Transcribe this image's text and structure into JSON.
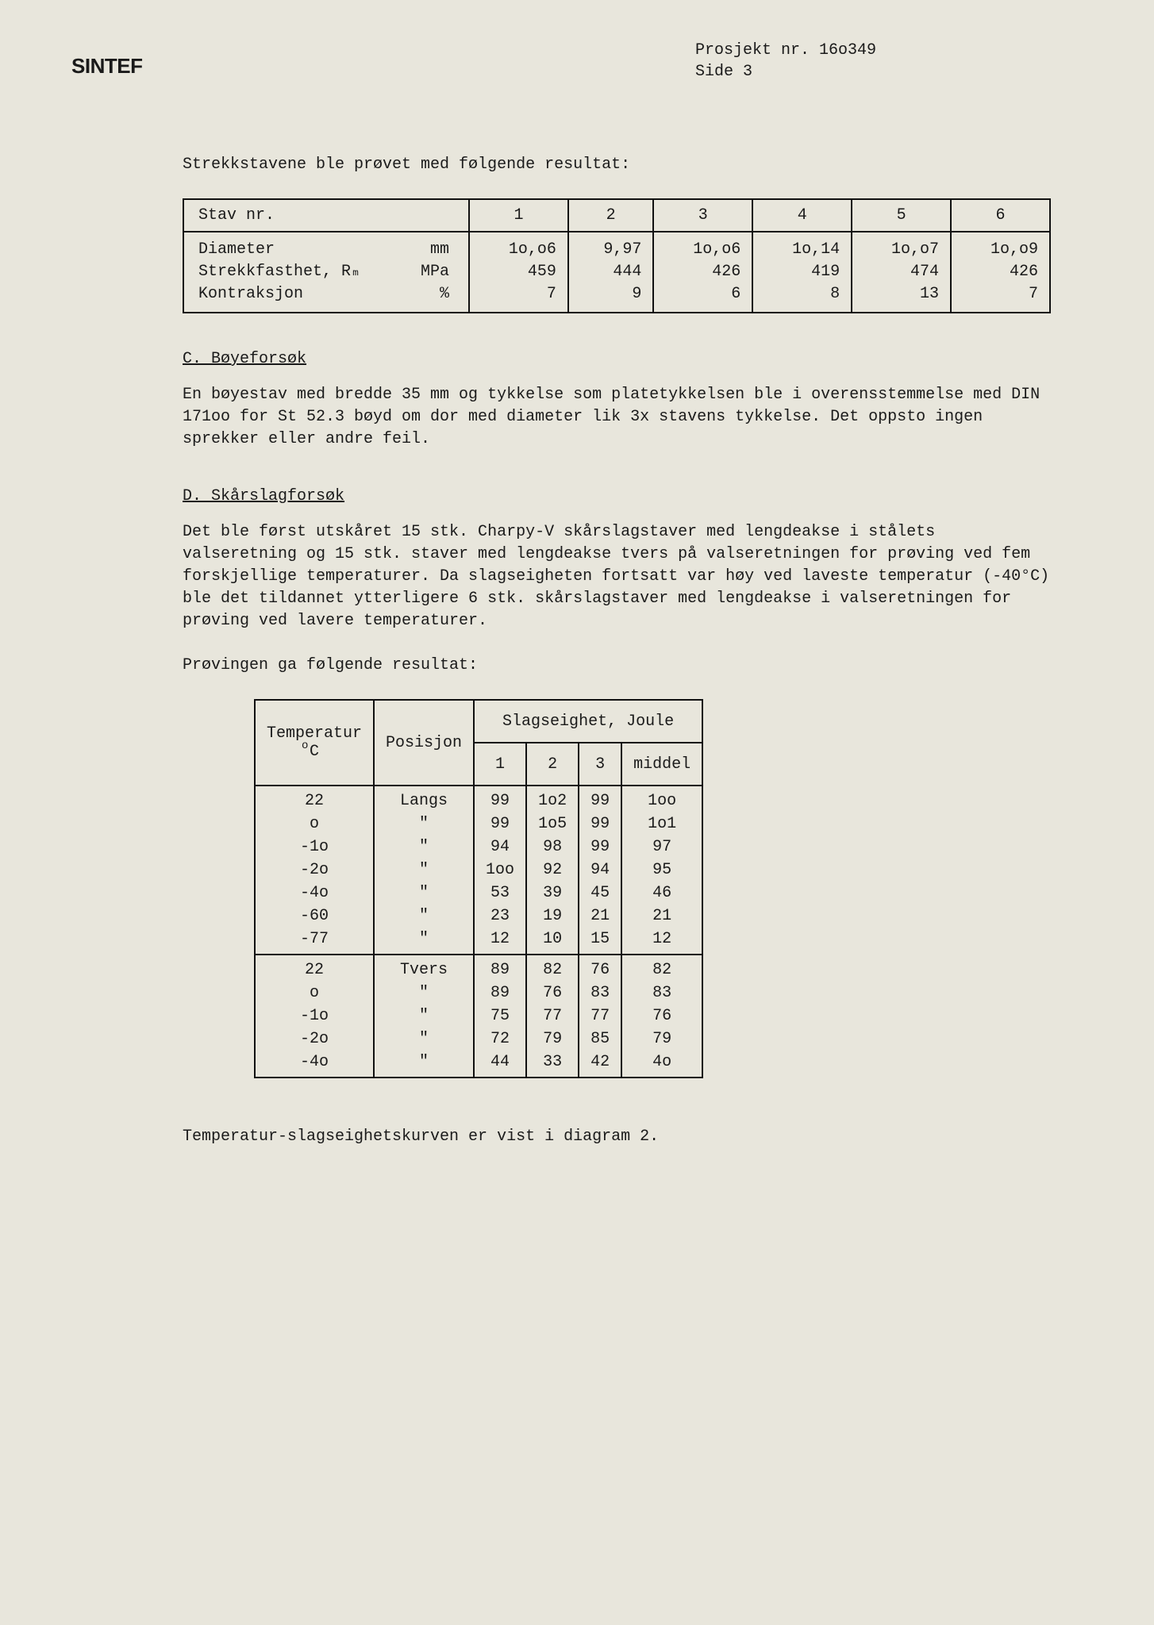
{
  "header": {
    "logo": "SINTEF",
    "project_label": "Prosjekt nr.",
    "project_no": "16o349",
    "page_label": "Side",
    "page_no": "3"
  },
  "intro1": "Strekkstavene ble prøvet med følgende resultat:",
  "table1": {
    "header_label": "Stav nr.",
    "cols": [
      "1",
      "2",
      "3",
      "4",
      "5",
      "6"
    ],
    "row_labels": [
      {
        "name": "Diameter",
        "unit": "mm"
      },
      {
        "name": "Strekkfasthet, Rₘ",
        "unit": "MPa"
      },
      {
        "name": "Kontraksjon",
        "unit": "%"
      }
    ],
    "data": [
      [
        "1o,o6",
        "9,97",
        "1o,o6",
        "1o,14",
        "1o,o7",
        "1o,o9"
      ],
      [
        "459",
        "444",
        "426",
        "419",
        "474",
        "426"
      ],
      [
        "7",
        "9",
        "6",
        "8",
        "13",
        "7"
      ]
    ]
  },
  "sectionC": {
    "title": "C. Bøyeforsøk",
    "text": "En bøyestav med bredde 35 mm og tykkelse som platetykkelsen ble i overensstemmelse med DIN 171oo for St 52.3 bøyd om dor med diameter lik 3x stavens tykkelse.  Det oppsto ingen sprekker eller andre feil."
  },
  "sectionD": {
    "title": "D.  Skårslagforsøk",
    "text": "Det ble først utskåret 15 stk. Charpy-V skårslagstaver med lengdeakse i stålets valseretning og 15 stk. staver med lengdeakse tvers på valseretningen for prøving ved fem forskjellige temperaturer. Da slagseigheten fortsatt var høy ved laveste temperatur (-40°C) ble det tildannet ytterligere 6 stk. skårslagstaver med lengdeakse i valseretningen for prøving ved lavere temperaturer."
  },
  "intro2": "Prøvingen ga følgende resultat:",
  "table2": {
    "col_temp": "Temperatur",
    "col_temp_unit": "C",
    "col_pos": "Posisjon",
    "col_slag": "Slagseighet, Joule",
    "sub_cols": [
      "1",
      "2",
      "3",
      "middel"
    ],
    "group1": {
      "pos": "Langs",
      "rows": [
        {
          "t": "22",
          "v": [
            "99",
            "1o2",
            "99",
            "1oo"
          ]
        },
        {
          "t": "o",
          "v": [
            "99",
            "1o5",
            "99",
            "1o1"
          ]
        },
        {
          "t": "-1o",
          "v": [
            "94",
            "98",
            "99",
            "97"
          ]
        },
        {
          "t": "-2o",
          "v": [
            "1oo",
            "92",
            "94",
            "95"
          ]
        },
        {
          "t": "-4o",
          "v": [
            "53",
            "39",
            "45",
            "46"
          ]
        },
        {
          "t": "-60",
          "v": [
            "23",
            "19",
            "21",
            "21"
          ]
        },
        {
          "t": "-77",
          "v": [
            "12",
            "10",
            "15",
            "12"
          ]
        }
      ]
    },
    "group2": {
      "pos": "Tvers",
      "rows": [
        {
          "t": "22",
          "v": [
            "89",
            "82",
            "76",
            "82"
          ]
        },
        {
          "t": "o",
          "v": [
            "89",
            "76",
            "83",
            "83"
          ]
        },
        {
          "t": "-1o",
          "v": [
            "75",
            "77",
            "77",
            "76"
          ]
        },
        {
          "t": "-2o",
          "v": [
            "72",
            "79",
            "85",
            "79"
          ]
        },
        {
          "t": "-4o",
          "v": [
            "44",
            "33",
            "42",
            "4o"
          ]
        }
      ]
    }
  },
  "footer": "Temperatur-slagseighetskurven er vist i diagram 2.",
  "colors": {
    "background": "#e8e6dc",
    "text": "#1a1a1a",
    "border": "#111111"
  }
}
